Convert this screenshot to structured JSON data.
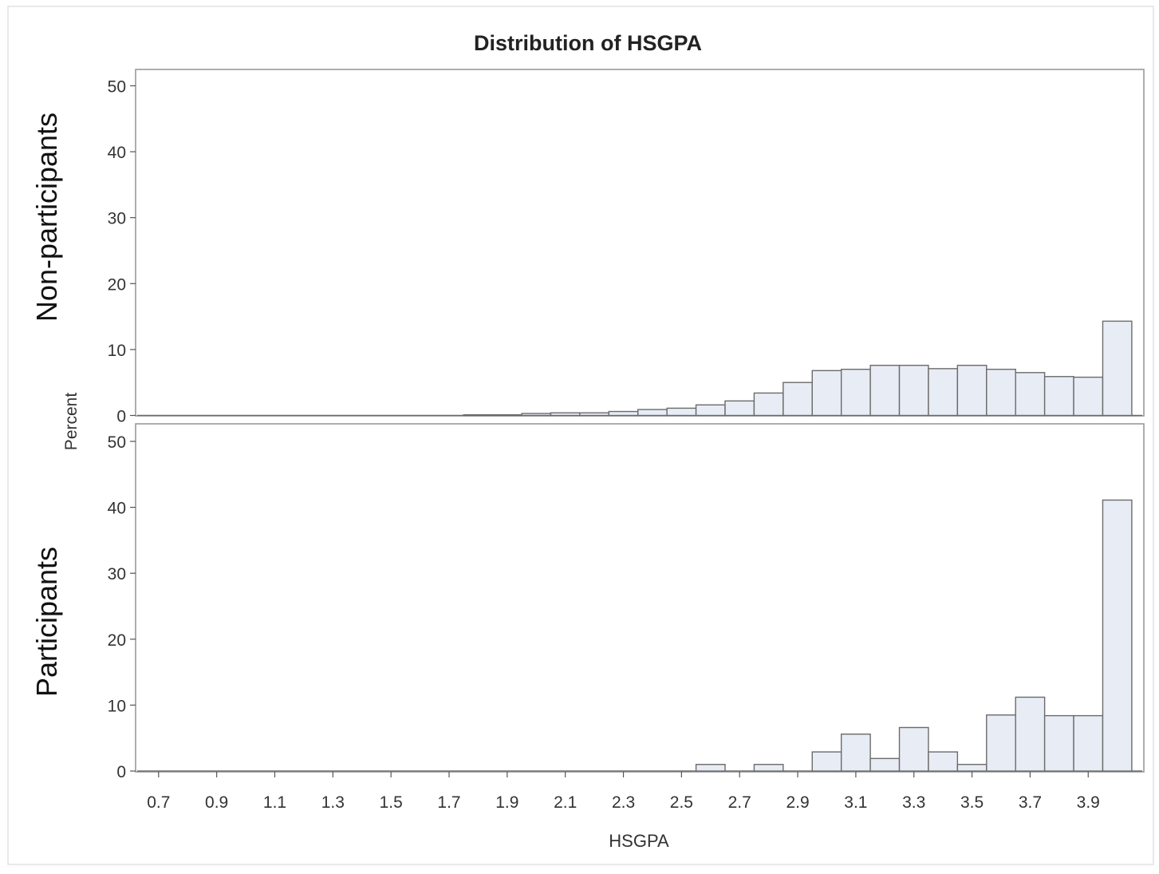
{
  "chart_data": {
    "type": "bar",
    "title": "Distribution of HSGPA",
    "xlabel": "HSGPA",
    "ylabel": "Percent",
    "x_ticks": [
      "0.7",
      "0.9",
      "1.1",
      "1.3",
      "1.5",
      "1.7",
      "1.9",
      "2.1",
      "2.3",
      "2.5",
      "2.7",
      "2.9",
      "3.1",
      "3.3",
      "3.5",
      "3.7",
      "3.9"
    ],
    "bin_width": 0.1,
    "ylim": [
      0,
      50
    ],
    "y_ticks": [
      "0",
      "10",
      "20",
      "30",
      "40",
      "50"
    ],
    "grid": false,
    "panels": [
      {
        "name": "Non-participants",
        "bins": [
          {
            "x": 1.8,
            "value": 0.1
          },
          {
            "x": 1.9,
            "value": 0.1
          },
          {
            "x": 2.0,
            "value": 0.3
          },
          {
            "x": 2.1,
            "value": 0.4
          },
          {
            "x": 2.2,
            "value": 0.4
          },
          {
            "x": 2.3,
            "value": 0.6
          },
          {
            "x": 2.4,
            "value": 0.9
          },
          {
            "x": 2.5,
            "value": 1.1
          },
          {
            "x": 2.6,
            "value": 1.6
          },
          {
            "x": 2.7,
            "value": 2.2
          },
          {
            "x": 2.8,
            "value": 3.4
          },
          {
            "x": 2.9,
            "value": 5.0
          },
          {
            "x": 3.0,
            "value": 6.8
          },
          {
            "x": 3.1,
            "value": 7.0
          },
          {
            "x": 3.2,
            "value": 7.6
          },
          {
            "x": 3.3,
            "value": 7.6
          },
          {
            "x": 3.4,
            "value": 7.1
          },
          {
            "x": 3.5,
            "value": 7.6
          },
          {
            "x": 3.6,
            "value": 7.0
          },
          {
            "x": 3.7,
            "value": 6.5
          },
          {
            "x": 3.8,
            "value": 5.9
          },
          {
            "x": 3.9,
            "value": 5.8
          },
          {
            "x": 4.0,
            "value": 14.3
          }
        ]
      },
      {
        "name": "Participants",
        "bins": [
          {
            "x": 2.6,
            "value": 1.0
          },
          {
            "x": 2.8,
            "value": 1.0
          },
          {
            "x": 3.0,
            "value": 2.9
          },
          {
            "x": 3.1,
            "value": 5.6
          },
          {
            "x": 3.2,
            "value": 1.9
          },
          {
            "x": 3.3,
            "value": 6.6
          },
          {
            "x": 3.4,
            "value": 2.9
          },
          {
            "x": 3.5,
            "value": 1.0
          },
          {
            "x": 3.6,
            "value": 8.5
          },
          {
            "x": 3.7,
            "value": 11.2
          },
          {
            "x": 3.8,
            "value": 8.4
          },
          {
            "x": 3.9,
            "value": 8.4
          },
          {
            "x": 4.0,
            "value": 41.1
          }
        ]
      }
    ],
    "colors": {
      "bar_fill": "#e8ecf5",
      "bar_stroke": "#6b6b6b",
      "frame": "#9a9a9a",
      "text": "#222222"
    }
  }
}
